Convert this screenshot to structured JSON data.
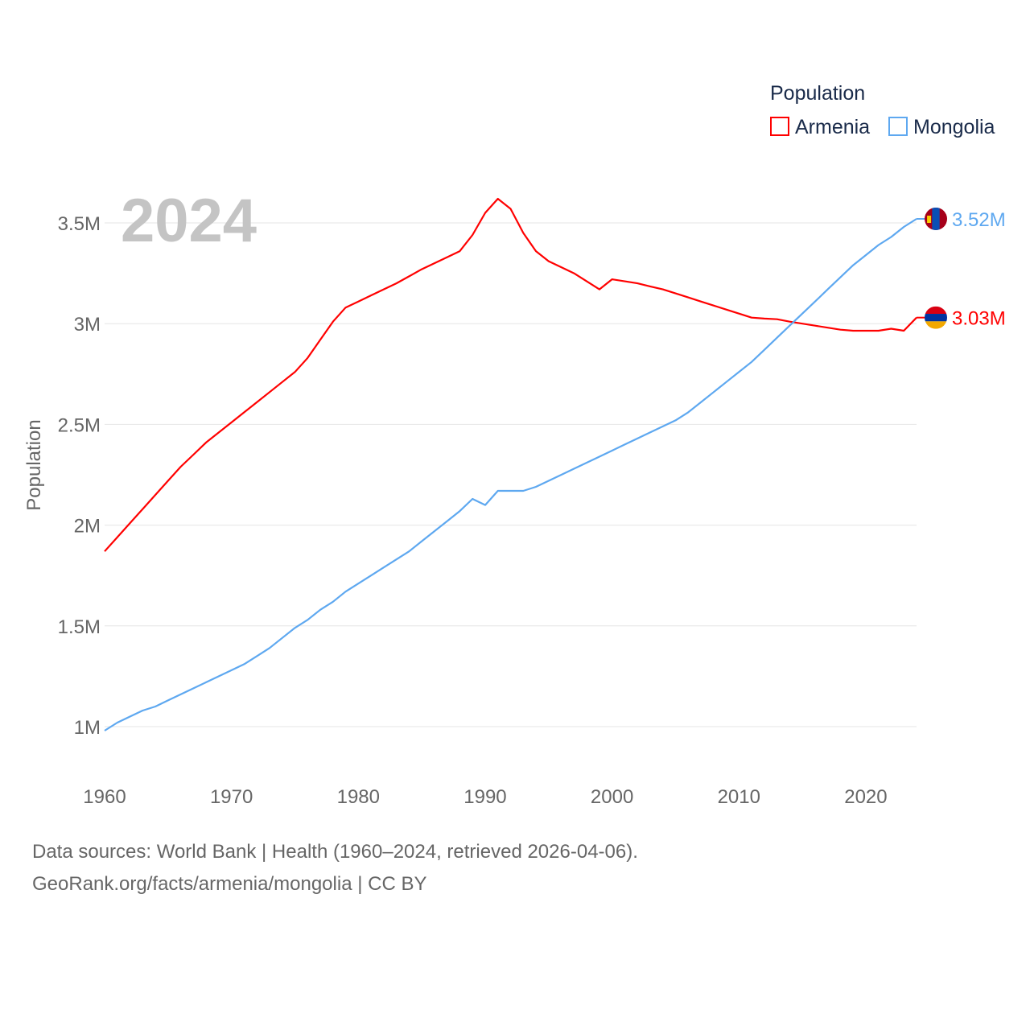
{
  "chart_data": {
    "type": "line",
    "title": "",
    "year_label": "2024",
    "xlabel": "",
    "ylabel": "Population",
    "xlim": [
      1960,
      2024
    ],
    "ylim": [
      0.8,
      3.75
    ],
    "x_ticks": [
      1960,
      1970,
      1980,
      1990,
      2000,
      2010,
      2020
    ],
    "x_tick_labels": [
      "1960",
      "1970",
      "1980",
      "1990",
      "2000",
      "2010",
      "2020"
    ],
    "y_ticks": [
      1,
      1.5,
      2,
      2.5,
      3,
      3.5
    ],
    "y_tick_labels": [
      "1M",
      "1.5M",
      "2M",
      "2.5M",
      "3M",
      "3.5M"
    ],
    "grid": true,
    "legend": {
      "title": "Population",
      "placement": "top-right"
    },
    "x_start": 1960,
    "series": [
      {
        "name": "Armenia",
        "color": "#ff0000",
        "end_label": "3.03M",
        "flag": "armenia-flag",
        "values": [
          1.87,
          1.94,
          2.01,
          2.08,
          2.15,
          2.22,
          2.29,
          2.35,
          2.41,
          2.46,
          2.51,
          2.56,
          2.61,
          2.66,
          2.71,
          2.76,
          2.83,
          2.92,
          3.01,
          3.08,
          3.11,
          3.14,
          3.17,
          3.2,
          3.235,
          3.27,
          3.3,
          3.33,
          3.36,
          3.44,
          3.55,
          3.62,
          3.57,
          3.45,
          3.36,
          3.31,
          3.28,
          3.25,
          3.21,
          3.17,
          3.22,
          3.21,
          3.2,
          3.185,
          3.17,
          3.15,
          3.13,
          3.11,
          3.09,
          3.07,
          3.05,
          3.03,
          3.025,
          3.022,
          3.01,
          3.0,
          2.99,
          2.98,
          2.97,
          2.965,
          2.965,
          2.965,
          2.975,
          2.965,
          3.03
        ]
      },
      {
        "name": "Mongolia",
        "color": "#5ea8f0",
        "end_label": "3.52M",
        "flag": "mongolia-flag",
        "values": [
          0.98,
          1.02,
          1.05,
          1.08,
          1.1,
          1.13,
          1.16,
          1.19,
          1.22,
          1.25,
          1.28,
          1.31,
          1.35,
          1.39,
          1.44,
          1.49,
          1.53,
          1.58,
          1.62,
          1.67,
          1.71,
          1.75,
          1.79,
          1.83,
          1.87,
          1.92,
          1.97,
          2.02,
          2.07,
          2.13,
          2.1,
          2.17,
          2.17,
          2.17,
          2.19,
          2.22,
          2.25,
          2.28,
          2.31,
          2.34,
          2.37,
          2.4,
          2.43,
          2.46,
          2.49,
          2.52,
          2.56,
          2.61,
          2.66,
          2.71,
          2.76,
          2.81,
          2.87,
          2.93,
          2.99,
          3.05,
          3.11,
          3.17,
          3.23,
          3.29,
          3.34,
          3.39,
          3.43,
          3.48,
          3.52
        ]
      }
    ]
  },
  "footer": {
    "line1": "Data sources: World Bank | Health (1960–2024, retrieved 2026-04-06).",
    "line2": "GeoRank.org/facts/armenia/mongolia | CC BY"
  }
}
